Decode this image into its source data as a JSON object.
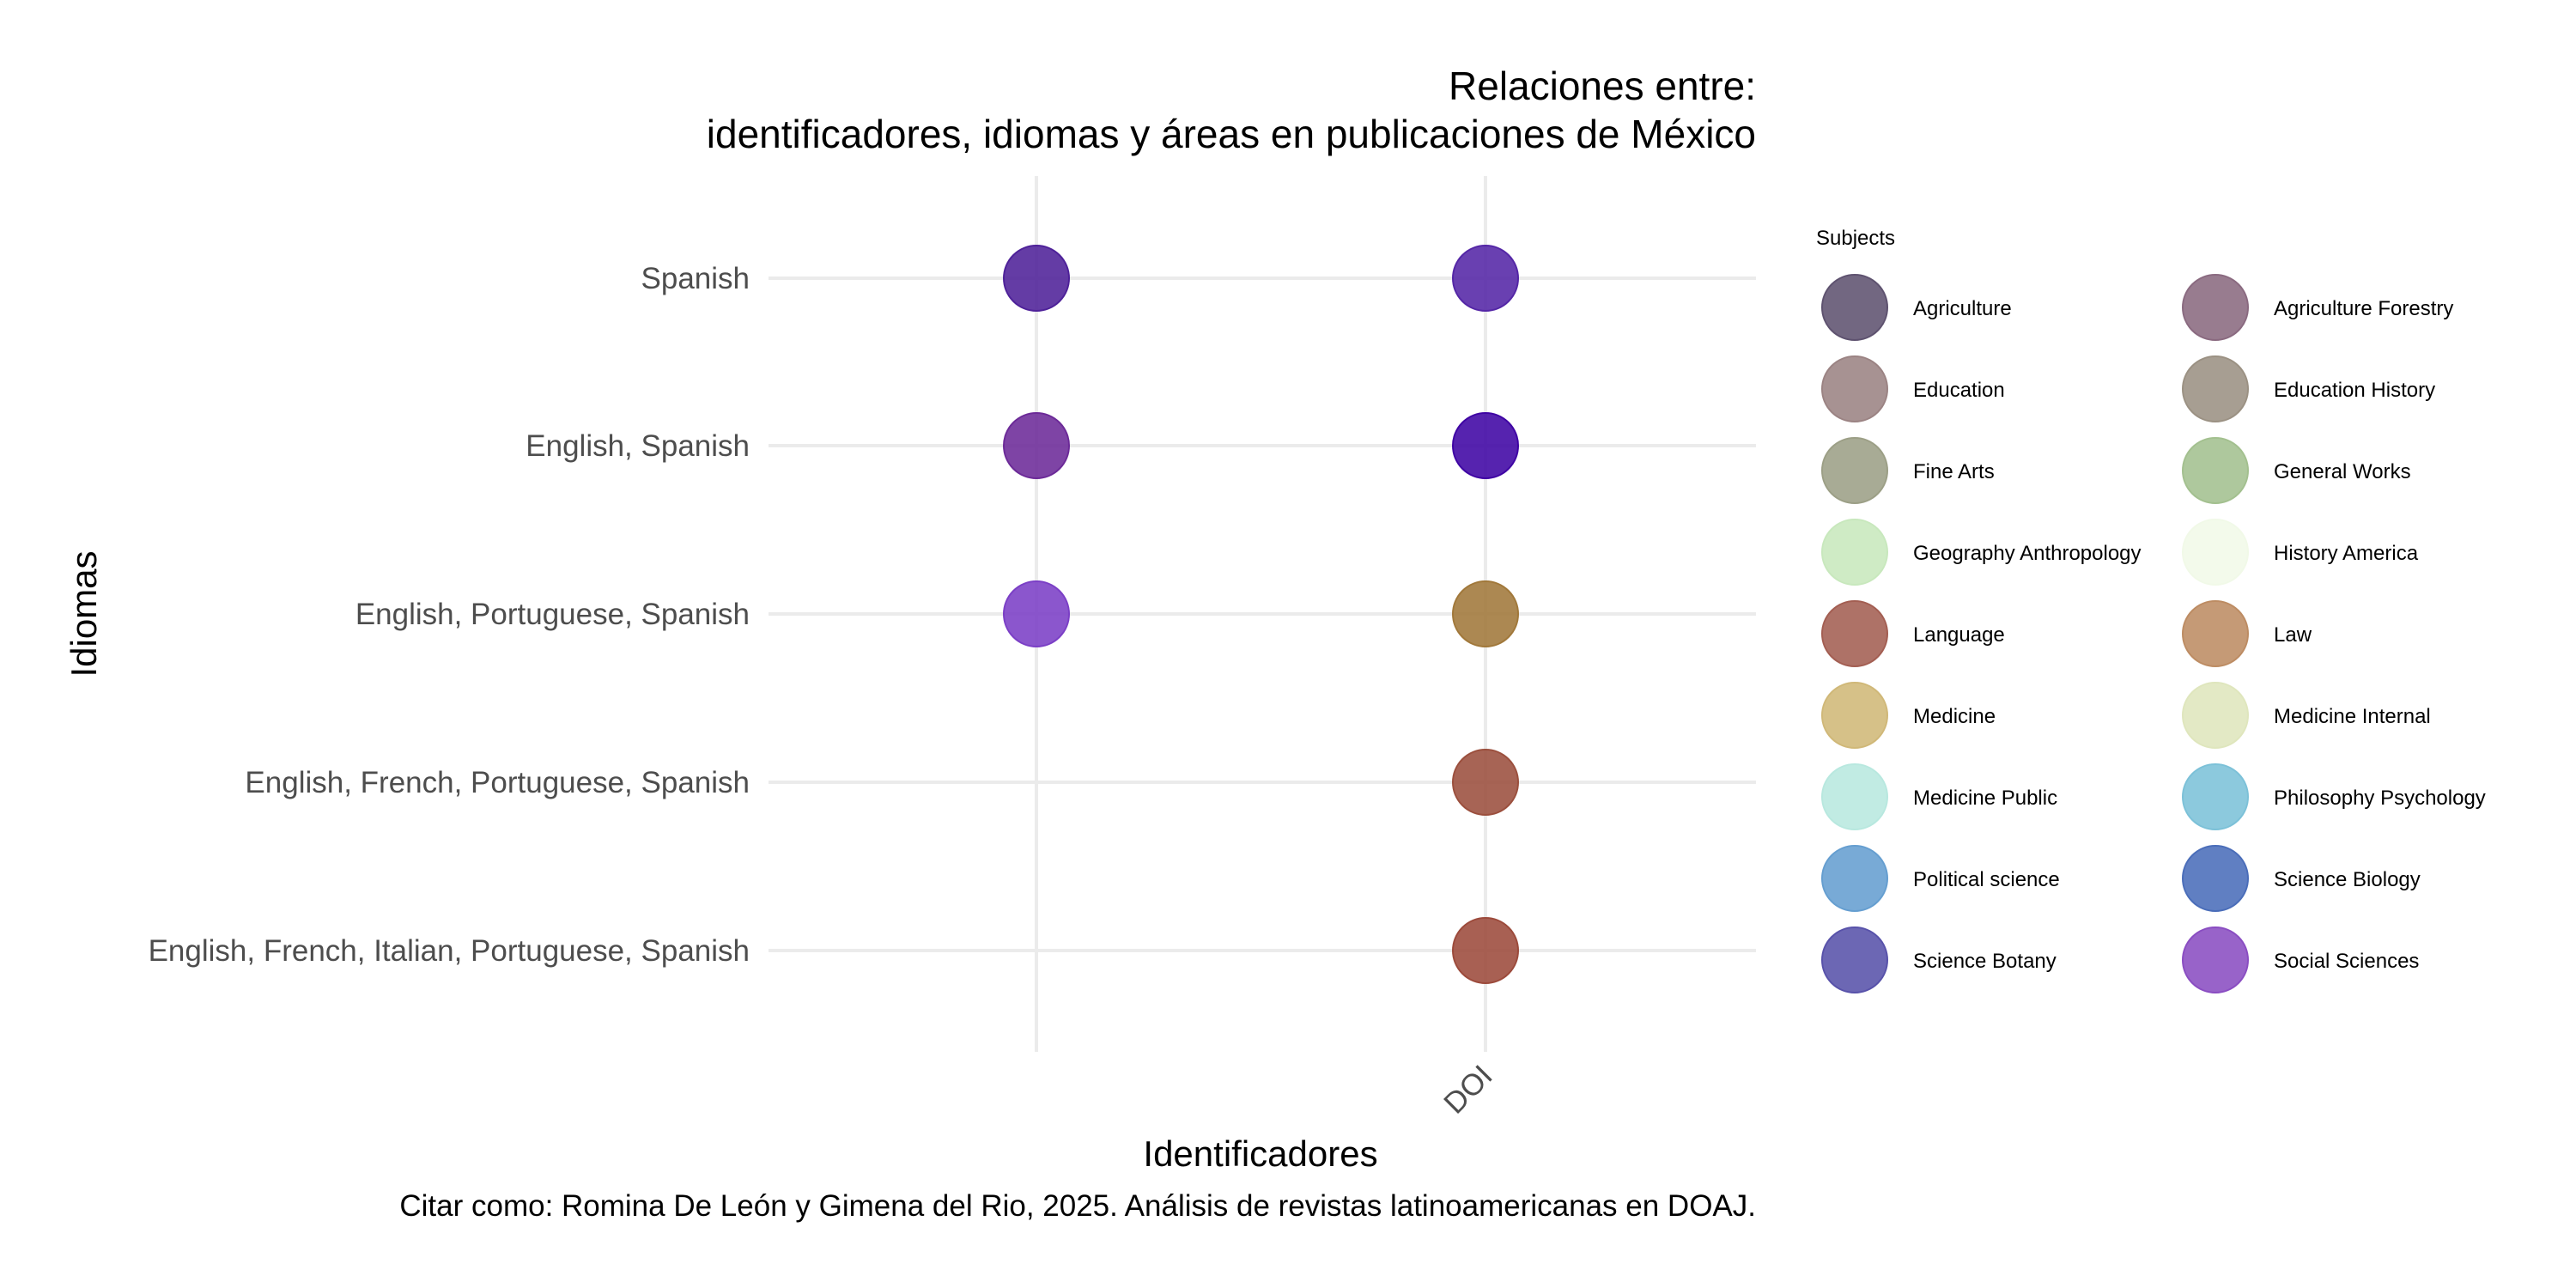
{
  "chart_data": {
    "type": "scatter",
    "title": "Relaciones entre:",
    "subtitle": "identificadores, idiomas y áreas en publicaciones de México",
    "xlabel": "Identificadores",
    "ylabel": "Idiomas",
    "caption": "Citar como: Romina De León y Gimena del Rio, 2025. Análisis de revistas latinoamericanas en DOAJ.",
    "x_categories": [
      "",
      "DOI"
    ],
    "y_categories": [
      "Spanish",
      "English, Spanish",
      "English, Portuguese, Spanish",
      "English, French, Portuguese, Spanish",
      "English, French, Italian, Portuguese, Spanish"
    ],
    "points": [
      {
        "x": "",
        "y": "Spanish",
        "color": "#4e2199"
      },
      {
        "x": "DOI",
        "y": "Spanish",
        "color": "#5426a6"
      },
      {
        "x": "",
        "y": "English, Spanish",
        "color": "#6c2a98"
      },
      {
        "x": "DOI",
        "y": "English, Spanish",
        "color": "#3f04a4"
      },
      {
        "x": "",
        "y": "English, Portuguese, Spanish",
        "color": "#7b3fc6"
      },
      {
        "x": "DOI",
        "y": "English, Portuguese, Spanish",
        "color": "#a1783a"
      },
      {
        "x": "DOI",
        "y": "English, French, Portuguese, Spanish",
        "color": "#9b4f3d"
      },
      {
        "x": "DOI",
        "y": "English, French, Italian, Portuguese, Spanish",
        "color": "#9c4a3b"
      }
    ],
    "legend": {
      "title": "Subjects",
      "position": "right",
      "columns": 2,
      "items": [
        {
          "label": "Agriculture",
          "color": "#5e526f"
        },
        {
          "label": "Agriculture Forestry",
          "color": "#8a6a80"
        },
        {
          "label": "Education",
          "color": "#9b8383"
        },
        {
          "label": "Education History",
          "color": "#9b9183"
        },
        {
          "label": "Fine Arts",
          "color": "#9c9f86"
        },
        {
          "label": "General Works",
          "color": "#a3c08f"
        },
        {
          "label": "Geography Anthropology",
          "color": "#c8e8bd"
        },
        {
          "label": "History America",
          "color": "#f1f9e8"
        },
        {
          "label": "Language",
          "color": "#a35e52"
        },
        {
          "label": "Law",
          "color": "#bd8c63"
        },
        {
          "label": "Medicine",
          "color": "#d0b878"
        },
        {
          "label": "Medicine Internal",
          "color": "#dfe6bd"
        },
        {
          "label": "Medicine Public",
          "color": "#b8e8df"
        },
        {
          "label": "Philosophy Psychology",
          "color": "#7cc1d8"
        },
        {
          "label": "Political science",
          "color": "#659ed0"
        },
        {
          "label": "Science Biology",
          "color": "#4a6db9"
        },
        {
          "label": "Science Botany",
          "color": "#5852aa"
        },
        {
          "label": "Social Sciences",
          "color": "#8a4dc2"
        }
      ]
    },
    "grid": true
  }
}
